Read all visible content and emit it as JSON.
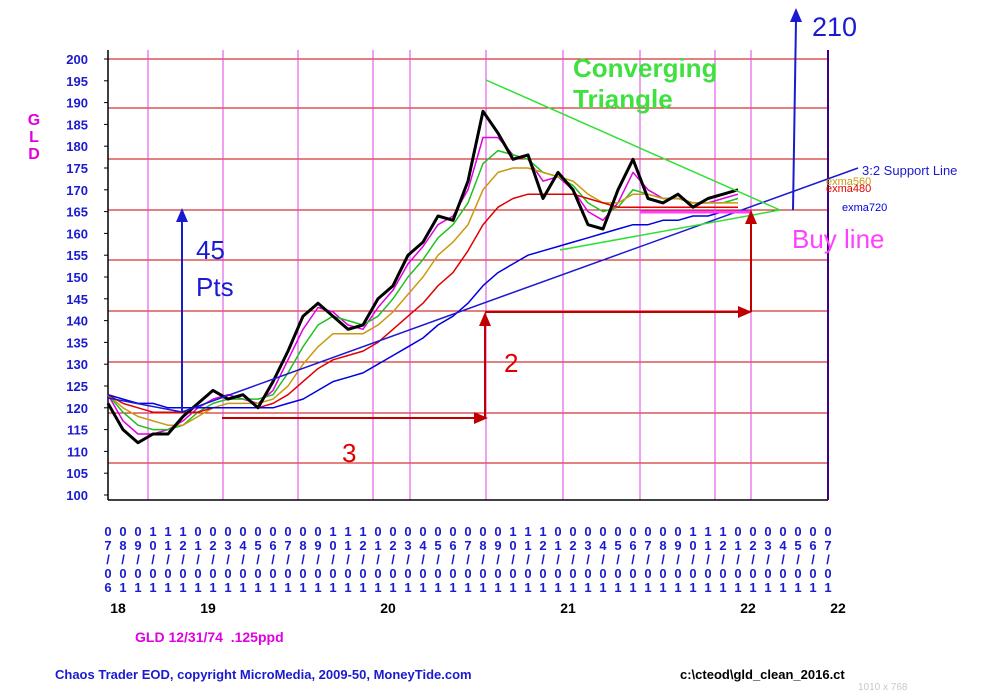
{
  "chart_data": {
    "type": "line",
    "y_label": "GLD",
    "categories": [
      "07/06",
      "08/01",
      "09/01",
      "10/01",
      "11/01",
      "12/01",
      "01/01",
      "02/01",
      "03/01",
      "04/01",
      "05/01",
      "06/01",
      "07/01",
      "08/01",
      "09/01",
      "10/01",
      "11/01",
      "12/01",
      "01/01",
      "02/01",
      "03/01",
      "04/01",
      "05/01",
      "06/01",
      "07/01",
      "08/01",
      "09/01",
      "10/01",
      "11/01",
      "12/01",
      "01/01",
      "02/01",
      "03/01",
      "04/01",
      "05/01",
      "06/01",
      "07/01",
      "08/01",
      "09/01",
      "10/01",
      "11/01",
      "12/01",
      "01/01",
      "02/01",
      "03/01",
      "04/01",
      "05/01",
      "06/01",
      "07/01"
    ],
    "year_labels": [
      "18",
      null,
      null,
      null,
      null,
      null,
      "19",
      null,
      null,
      null,
      null,
      null,
      null,
      null,
      null,
      null,
      null,
      null,
      "20",
      null,
      null,
      null,
      null,
      null,
      null,
      null,
      null,
      null,
      null,
      null,
      "21",
      null,
      null,
      null,
      null,
      null,
      null,
      null,
      null,
      null,
      null,
      null,
      "22",
      null,
      null,
      null,
      null,
      null,
      "22"
    ],
    "series": [
      {
        "color": "#000000",
        "values": [
          121,
          115,
          112,
          114,
          114,
          118,
          121,
          124,
          122,
          123,
          120,
          126,
          133,
          141,
          144,
          141,
          138,
          139,
          145,
          148,
          155,
          158,
          164,
          163,
          172,
          188,
          183,
          177,
          178,
          168,
          174,
          170,
          162,
          161,
          170,
          177,
          168,
          167,
          169,
          166,
          168,
          169,
          170,
          null,
          null,
          null,
          null,
          null,
          null
        ]
      },
      {
        "color": "#e000e0",
        "values": [
          123,
          117,
          114,
          114,
          115,
          117,
          120,
          122,
          123,
          122,
          121,
          124,
          131,
          138,
          143,
          142,
          139,
          138,
          143,
          147,
          153,
          157,
          162,
          164,
          170,
          182,
          182,
          178,
          177,
          172,
          173,
          170,
          165,
          163,
          167,
          174,
          170,
          168,
          168,
          167,
          167,
          168,
          169,
          null,
          null,
          null,
          null,
          null,
          null
        ]
      },
      {
        "color": "#20c020",
        "values": [
          123,
          119,
          116,
          115,
          115,
          116,
          119,
          121,
          122,
          122,
          122,
          123,
          128,
          134,
          139,
          141,
          140,
          139,
          141,
          145,
          150,
          154,
          159,
          162,
          167,
          176,
          179,
          178,
          177,
          174,
          173,
          171,
          167,
          165,
          166,
          170,
          169,
          168,
          168,
          167,
          167,
          167,
          168,
          null,
          null,
          null,
          null,
          null,
          null
        ]
      },
      {
        "name": "exma560",
        "color": "#c89a10",
        "values": [
          123,
          120,
          118,
          117,
          116,
          116,
          118,
          120,
          121,
          121,
          121,
          122,
          125,
          130,
          134,
          137,
          137,
          137,
          139,
          142,
          146,
          150,
          155,
          158,
          162,
          170,
          174,
          175,
          175,
          174,
          173,
          172,
          169,
          167,
          167,
          169,
          169,
          168,
          168,
          167,
          167,
          167,
          167,
          null,
          null,
          null,
          null,
          null,
          null
        ]
      },
      {
        "name": "exma480",
        "color": "#e00000",
        "values": [
          123,
          121,
          120,
          119,
          119,
          119,
          119,
          120,
          120,
          120,
          120,
          121,
          123,
          126,
          129,
          131,
          132,
          133,
          135,
          138,
          141,
          144,
          148,
          151,
          156,
          162,
          166,
          168,
          169,
          169,
          169,
          169,
          168,
          167,
          166,
          166,
          166,
          166,
          166,
          166,
          166,
          166,
          166,
          null,
          null,
          null,
          null,
          null,
          null
        ]
      },
      {
        "name": "exma720",
        "color": "#0000e0",
        "values": [
          123,
          122,
          121,
          121,
          120,
          120,
          120,
          120,
          120,
          120,
          120,
          120,
          121,
          122,
          124,
          126,
          127,
          128,
          130,
          132,
          134,
          136,
          139,
          141,
          144,
          148,
          151,
          153,
          155,
          156,
          157,
          158,
          159,
          160,
          161,
          162,
          162,
          163,
          163,
          164,
          164,
          165,
          165,
          null,
          null,
          null,
          null,
          null,
          null
        ]
      }
    ],
    "ylim": [
      100,
      200
    ],
    "yticks": [
      100,
      105,
      110,
      115,
      120,
      125,
      130,
      135,
      140,
      145,
      150,
      155,
      160,
      165,
      170,
      175,
      180,
      185,
      190,
      195,
      200
    ],
    "annotations": [
      "210",
      "Converging",
      "Triangle",
      "45",
      "Pts",
      "2",
      "3",
      "Buy line",
      "3:2 Support Line"
    ],
    "subtitle": "GLD 12/31/74  .125ppd",
    "footer_left": "Chaos Trader EOD, copyright MicroMedia, 2009-50, MoneyTide.com",
    "footer_right": "c:\\cteod\\gld_clean_2016.ct",
    "size_note": "1010 x 768"
  }
}
